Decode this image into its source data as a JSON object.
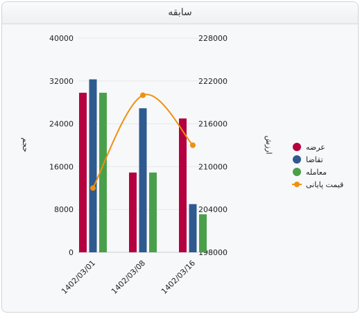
{
  "panel": {
    "title": "سابقه"
  },
  "chart_data": {
    "type": "bar",
    "categories": [
      "1402/03/01",
      "1402/03/08",
      "1402/03/16"
    ],
    "left_axis": {
      "label": "حجم",
      "ylim": [
        0,
        40000
      ],
      "ticks": [
        "0",
        "8000",
        "16000",
        "24000",
        "32000",
        "40000"
      ]
    },
    "right_axis": {
      "label": "ارزش",
      "ylim": [
        198000,
        228000
      ],
      "ticks": [
        "198000",
        "204000",
        "210000",
        "216000",
        "222000",
        "228000"
      ]
    },
    "series": [
      {
        "name": "عرضه",
        "type": "bar",
        "axis": "left",
        "color": "#b5003f",
        "values": [
          29800,
          14900,
          25000
        ]
      },
      {
        "name": "تقاضا",
        "type": "bar",
        "axis": "left",
        "color": "#2e5a8f",
        "values": [
          32300,
          26900,
          9000
        ]
      },
      {
        "name": "معامله",
        "type": "bar",
        "axis": "left",
        "color": "#4aa04a",
        "values": [
          29800,
          14900,
          7100
        ]
      },
      {
        "name": "قیمت پایانی",
        "type": "line",
        "axis": "right",
        "color": "#f0900f",
        "values": [
          207000,
          220000,
          213000
        ]
      }
    ],
    "legend_position": "right",
    "grid": true
  }
}
